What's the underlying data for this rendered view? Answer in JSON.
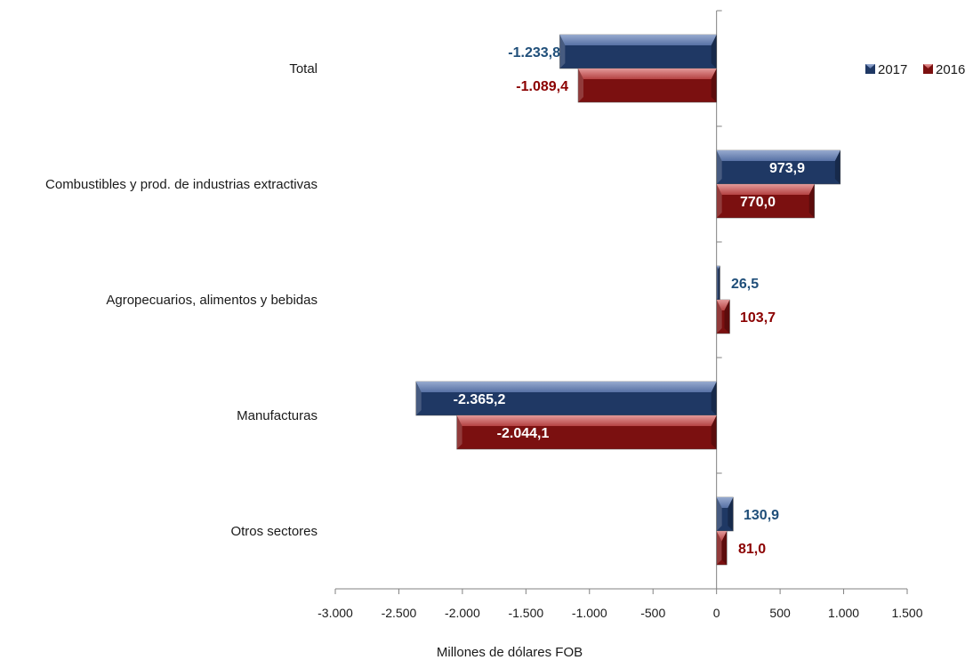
{
  "chart_data": {
    "type": "bar",
    "orientation": "horizontal",
    "categories": [
      "Total",
      "Combustibles y prod. de industrias extractivas",
      "Agropecuarios, alimentos y bebidas",
      "Manufacturas",
      "Otros sectores"
    ],
    "series": [
      {
        "name": "2017",
        "values": [
          -1233.8,
          973.9,
          26.5,
          -2365.2,
          130.9
        ],
        "labels": [
          "-1.233,8",
          "973,9",
          "26,5",
          "-2.365,2",
          "130,9"
        ],
        "color": "#1f3864",
        "label_color": "#1f4e79"
      },
      {
        "name": "2016",
        "values": [
          -1089.4,
          770.0,
          103.7,
          -2044.1,
          81.0
        ],
        "labels": [
          "-1.089,4",
          "770,0",
          "103,7",
          "-2.044,1",
          "81,0"
        ],
        "color": "#7b1010",
        "label_color": "#8b0000"
      }
    ],
    "xlim": [
      -3000,
      1500
    ],
    "xticks": [
      -3000,
      -2500,
      -2000,
      -1500,
      -1000,
      -500,
      0,
      500,
      1000,
      1500
    ],
    "xtick_labels": [
      "-3.000",
      "-2.500",
      "-2.000",
      "-1.500",
      "-1.000",
      "-500",
      "0",
      "500",
      "1.000",
      "1.500"
    ],
    "xlabel": "Millones de dólares FOB",
    "ylabel": "",
    "title": "",
    "grid": false,
    "legend": "top-right"
  }
}
